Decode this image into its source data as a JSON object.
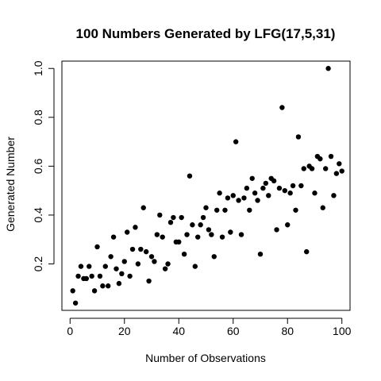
{
  "chart_data": {
    "type": "scatter",
    "title": "100 Numbers Generated by LFG(17,5,31)",
    "xlabel": "Number of Observations",
    "ylabel": "Generated Number",
    "xlim": [
      -3,
      103
    ],
    "ylim": [
      0.01,
      1.03
    ],
    "xticks": [
      0,
      20,
      40,
      60,
      80,
      100
    ],
    "yticks": [
      0.2,
      0.4,
      0.6,
      0.8,
      1.0
    ],
    "xtick_labels": [
      "0",
      "20",
      "40",
      "60",
      "80",
      "100"
    ],
    "ytick_labels": [
      "0.2",
      "0.4",
      "0.6",
      "0.8",
      "1.0"
    ],
    "grid": false,
    "marker_color": "#000000",
    "x": [
      1,
      2,
      3,
      4,
      5,
      6,
      7,
      8,
      9,
      10,
      11,
      12,
      13,
      14,
      15,
      16,
      17,
      18,
      19,
      20,
      21,
      22,
      23,
      24,
      25,
      26,
      27,
      28,
      29,
      30,
      31,
      32,
      33,
      34,
      35,
      36,
      37,
      38,
      39,
      40,
      41,
      42,
      43,
      44,
      45,
      46,
      47,
      48,
      49,
      50,
      51,
      52,
      53,
      54,
      55,
      56,
      57,
      58,
      59,
      60,
      61,
      62,
      63,
      64,
      65,
      66,
      67,
      68,
      69,
      70,
      71,
      72,
      73,
      74,
      75,
      76,
      77,
      78,
      79,
      80,
      81,
      82,
      83,
      84,
      85,
      86,
      87,
      88,
      89,
      90,
      91,
      92,
      93,
      94,
      95,
      96,
      97,
      98,
      99,
      100
    ],
    "y": [
      0.09,
      0.04,
      0.15,
      0.19,
      0.14,
      0.14,
      0.19,
      0.15,
      0.09,
      0.27,
      0.15,
      0.11,
      0.19,
      0.11,
      0.23,
      0.31,
      0.18,
      0.12,
      0.16,
      0.21,
      0.33,
      0.15,
      0.26,
      0.35,
      0.2,
      0.26,
      0.43,
      0.25,
      0.13,
      0.23,
      0.21,
      0.32,
      0.4,
      0.31,
      0.18,
      0.2,
      0.37,
      0.39,
      0.29,
      0.29,
      0.39,
      0.24,
      0.32,
      0.56,
      0.36,
      0.19,
      0.31,
      0.36,
      0.39,
      0.43,
      0.34,
      0.32,
      0.23,
      0.42,
      0.49,
      0.31,
      0.42,
      0.47,
      0.33,
      0.48,
      0.7,
      0.46,
      0.32,
      0.47,
      0.51,
      0.42,
      0.55,
      0.49,
      0.46,
      0.24,
      0.51,
      0.53,
      0.48,
      0.55,
      0.54,
      0.34,
      0.51,
      0.84,
      0.5,
      0.36,
      0.49,
      0.52,
      0.42,
      0.72,
      0.52,
      0.59,
      0.25,
      0.6,
      0.59,
      0.49,
      0.64,
      0.63,
      0.43,
      0.59,
      1.0,
      0.64,
      0.48,
      0.57,
      0.61,
      0.58
    ]
  }
}
